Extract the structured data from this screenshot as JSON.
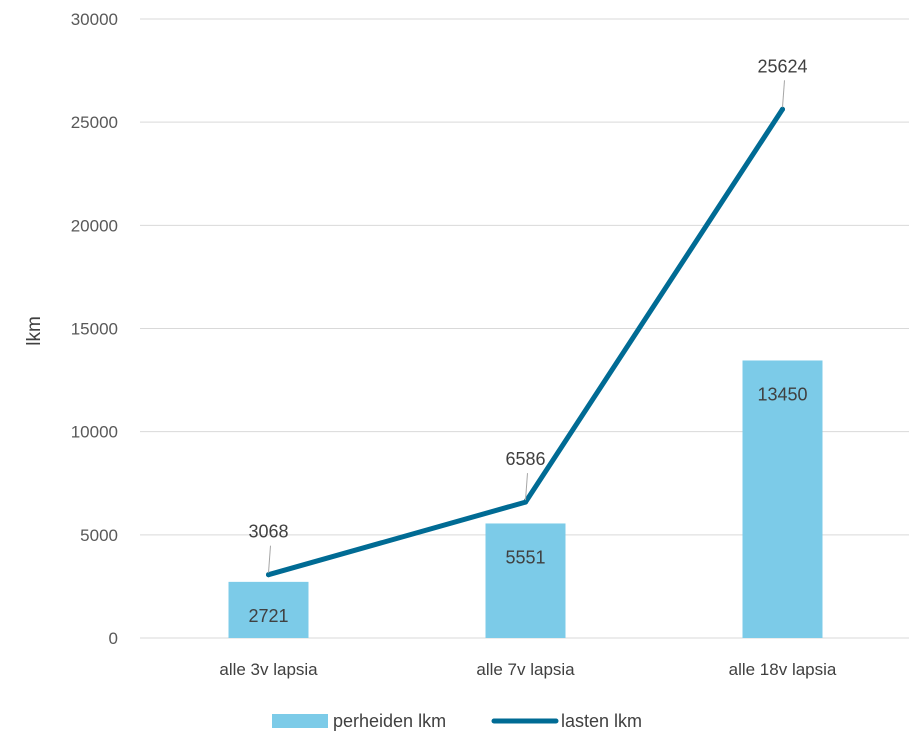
{
  "chart_data": {
    "type": "bar",
    "categories": [
      "alle 3v lapsia",
      "alle 7v lapsia",
      "alle 18v lapsia"
    ],
    "series": [
      {
        "name": "perheiden lkm",
        "type": "bar",
        "values": [
          2721,
          5551,
          13450
        ],
        "color": "#7ccbe8"
      },
      {
        "name": "lasten lkm",
        "type": "line",
        "values": [
          3068,
          6586,
          25624
        ],
        "color": "#006b94"
      }
    ],
    "ylabel": "lkm",
    "ylim": [
      0,
      30000
    ],
    "yticks": [
      0,
      5000,
      10000,
      15000,
      20000,
      25000,
      30000
    ],
    "grid": true,
    "legend": "bottom"
  }
}
